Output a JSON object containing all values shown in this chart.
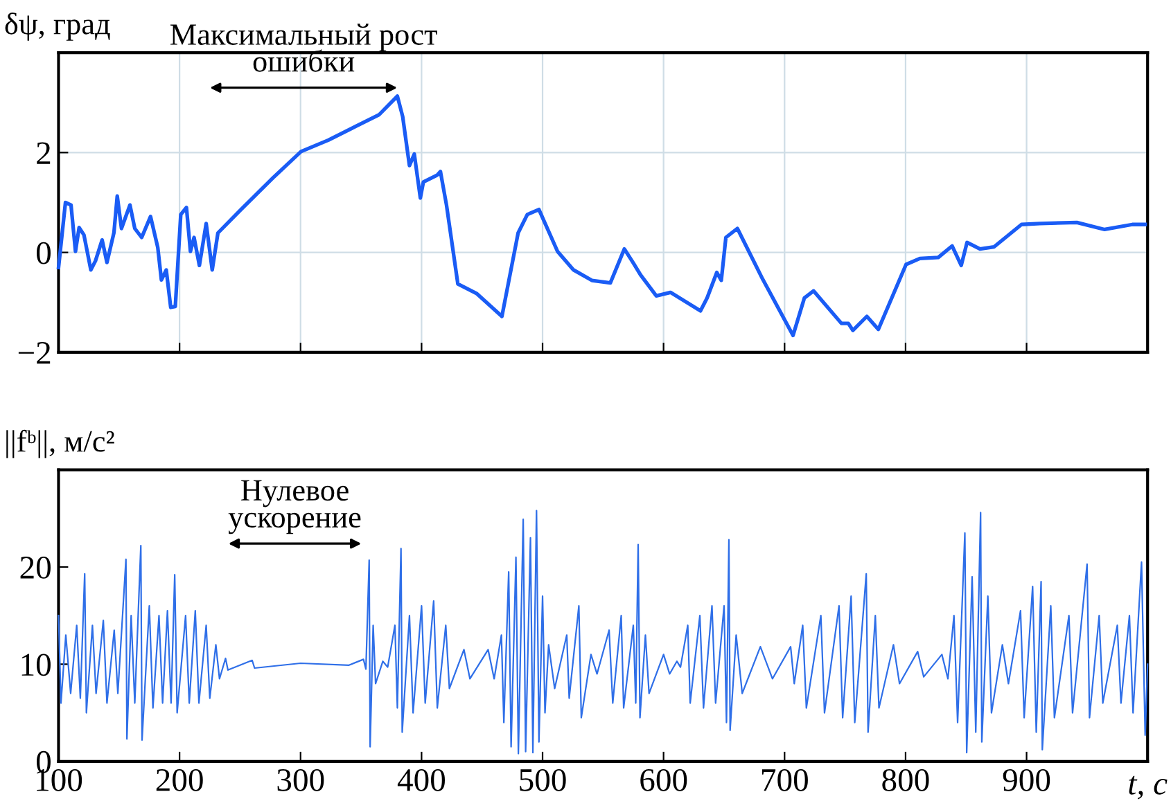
{
  "chart_data": [
    {
      "type": "line",
      "ylabel": "δψ, град",
      "xlim": [
        100,
        1000
      ],
      "xticks": [
        100,
        200,
        300,
        400,
        500,
        600,
        700,
        800,
        900
      ],
      "ylim": [
        -2,
        4
      ],
      "yticks": [
        {
          "value": -2,
          "label": "−2"
        },
        0,
        2
      ],
      "grid": true,
      "tick_labels": "y",
      "annotations": [
        "Максимальный рост\nошибки"
      ],
      "series": [
        {
          "color": "#1a5cf5",
          "x": [
            100,
            105.7,
            110.3,
            114,
            117,
            121,
            126.7,
            130.5,
            136,
            140,
            145.8,
            148.5,
            152,
            159,
            163,
            168.7,
            176,
            182,
            185,
            189,
            192.7,
            196.5,
            201,
            205.7,
            209,
            212,
            216.4,
            222,
            227,
            231.7,
            250.8,
            277.5,
            300.4,
            323,
            346,
            365,
            380,
            384.4,
            390,
            394,
            399,
            401.5,
            413,
            415.6,
            420.6,
            430,
            445.4,
            466.4,
            479.8,
            487.4,
            497,
            512.4,
            525.6,
            540.8,
            556,
            567.6,
            575,
            581,
            594,
            605.7,
            630.5,
            636,
            644,
            647.7,
            651.5,
            661,
            682,
            707,
            716.4,
            724,
            747,
            752.7,
            756.5,
            768,
            777.5,
            800.4,
            811.8,
            827,
            838.5,
            846,
            850.8,
            861.5,
            873,
            895.8,
            911,
            941.6,
            964.5,
            987.4,
            998
          ],
          "values": [
            -0.3,
            1.0,
            0.95,
            0.02,
            0.5,
            0.35,
            -0.35,
            -0.17,
            0.25,
            -0.2,
            0.4,
            1.13,
            0.48,
            0.95,
            0.48,
            0.3,
            0.72,
            0.1,
            -0.55,
            -0.35,
            -1.1,
            -1.08,
            0.76,
            0.9,
            0.02,
            0.3,
            -0.26,
            0.58,
            -0.35,
            0.39,
            0.86,
            1.5,
            2.02,
            2.25,
            2.53,
            2.76,
            3.13,
            2.72,
            1.74,
            1.97,
            1.09,
            1.41,
            1.55,
            1.62,
            0.95,
            -0.63,
            -0.82,
            -1.28,
            0.39,
            0.76,
            0.86,
            0.02,
            -0.35,
            -0.56,
            -0.61,
            0.07,
            -0.21,
            -0.45,
            -0.87,
            -0.8,
            -1.17,
            -0.91,
            -0.4,
            -0.56,
            0.3,
            0.48,
            -0.54,
            -1.66,
            -0.91,
            -0.77,
            -1.42,
            -1.42,
            -1.56,
            -1.28,
            -1.54,
            -0.24,
            -0.12,
            -0.1,
            0.13,
            -0.26,
            0.2,
            0.07,
            0.11,
            0.56,
            0.58,
            0.6,
            0.46,
            0.56,
            0.56
          ]
        }
      ]
    },
    {
      "type": "line",
      "ylabel": "||fᵇ||, м/с²",
      "xlabel": "t, с",
      "xlim": [
        100,
        1000
      ],
      "xticks": [
        100,
        200,
        300,
        400,
        500,
        600,
        700,
        800,
        900
      ],
      "ylim": [
        0,
        30
      ],
      "yticks": [
        0,
        10,
        20
      ],
      "annotations": [
        "Нулевое\nускорение"
      ],
      "series": [
        {
          "color": "#2f6fe8",
          "x": [
            100,
            102,
            106,
            110,
            115,
            118,
            121.6,
            123,
            128,
            131,
            137,
            140,
            146,
            149,
            155.7,
            156.5,
            160,
            163,
            168,
            169,
            175,
            178,
            183,
            186,
            190,
            193,
            196,
            198,
            205,
            208,
            213,
            216,
            222,
            225,
            230,
            233,
            238,
            240,
            260,
            262,
            300,
            340,
            352,
            354,
            356.7,
            357.5,
            360,
            362,
            368,
            372,
            378,
            380,
            383,
            384,
            390,
            393,
            400,
            403,
            410,
            413,
            420,
            423,
            435,
            440,
            455,
            460,
            466,
            468,
            472,
            474,
            478,
            480,
            484,
            486,
            490,
            492,
            495,
            497,
            500,
            502,
            505,
            510,
            520,
            522,
            530,
            532,
            540,
            545,
            555,
            558,
            565,
            567,
            575,
            577,
            579,
            580.5,
            585,
            588,
            600,
            605,
            611,
            614,
            620,
            622,
            630,
            633,
            640,
            643,
            650,
            652,
            654,
            655,
            660,
            665,
            680,
            690,
            705,
            708,
            715,
            718,
            730,
            733,
            745,
            748,
            755,
            758,
            767.5,
            769,
            775,
            778,
            790,
            795,
            810,
            815,
            830,
            835,
            840,
            843,
            849,
            850.5,
            855,
            858,
            862,
            863,
            868,
            871,
            880,
            885,
            895,
            898,
            905,
            908,
            912,
            913,
            920,
            923,
            935,
            938,
            950,
            952,
            960,
            963,
            975,
            978,
            985,
            988,
            995,
            998,
            1000
          ],
          "values": [
            15,
            6,
            13,
            7,
            14,
            6.5,
            19.3,
            5,
            14,
            7,
            14.5,
            6,
            13.5,
            7,
            20.8,
            2.3,
            15,
            6,
            22.2,
            2.2,
            16,
            5.5,
            15,
            6,
            15.5,
            6,
            19.2,
            5,
            15,
            6,
            15.5,
            6,
            14,
            6.5,
            12,
            8.5,
            10.6,
            9.4,
            10.4,
            9.6,
            10.1,
            9.9,
            10.5,
            9.5,
            20.7,
            1.5,
            14,
            8,
            10.3,
            9.7,
            14,
            5.5,
            21.9,
            3.0,
            15,
            5,
            16,
            6,
            16.5,
            5.5,
            14,
            7.5,
            11.5,
            8.5,
            11.5,
            8.5,
            13,
            4,
            19.5,
            1.5,
            21,
            0.8,
            24.9,
            1,
            23,
            0.9,
            25.8,
            2,
            17,
            5,
            12,
            7.5,
            13,
            6.5,
            16,
            4.5,
            11,
            9,
            13.5,
            6,
            15,
            5.5,
            14,
            6,
            22.3,
            4.5,
            13,
            7,
            11,
            9,
            10.3,
            9.7,
            14,
            6,
            15,
            5.5,
            16,
            6,
            16,
            4,
            22.8,
            3.2,
            13,
            7,
            11.8,
            8.5,
            11.8,
            8,
            14,
            5.5,
            15,
            5,
            16,
            4.5,
            17,
            4,
            19.3,
            3,
            15,
            5.5,
            12,
            8,
            11.3,
            8.7,
            11,
            8.5,
            15,
            4,
            23.5,
            0.9,
            19,
            3,
            25.6,
            2,
            17,
            5,
            12,
            8,
            15.5,
            4.5,
            18,
            3,
            18.5,
            1.2,
            16,
            4.5,
            15,
            5,
            20.3,
            4.5,
            15,
            6,
            14,
            6,
            15,
            5,
            20.5,
            2.7,
            10
          ]
        }
      ]
    }
  ]
}
